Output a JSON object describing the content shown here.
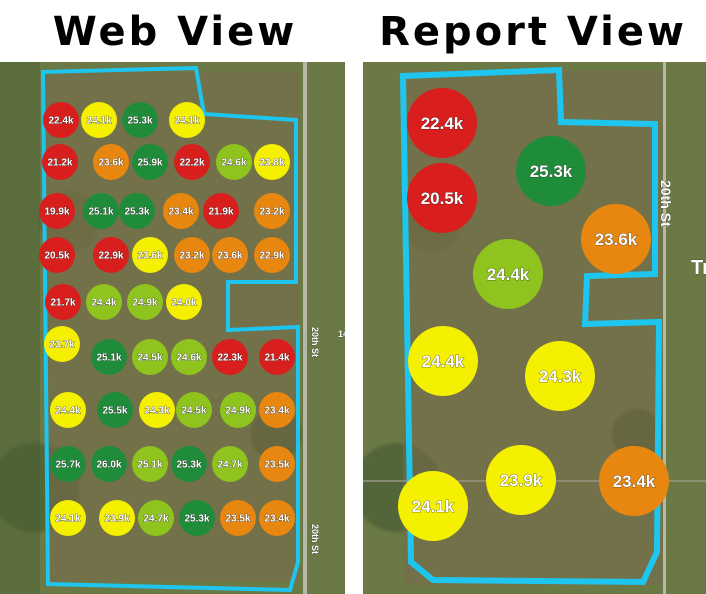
{
  "titles": {
    "left": "Web View",
    "right": "Report View"
  },
  "colors": {
    "red": "#d91e1e",
    "orange": "#e8870f",
    "yellow": "#f5f000",
    "lightgreen": "#8fc41e",
    "darkgreen": "#1f8c3a",
    "boundary": "#1ec5ee"
  },
  "map_labels": {
    "road_1": "20th St",
    "road_2": "20th St",
    "road_3": "20th St",
    "partial_1": "Tr",
    "partial_2": "14"
  },
  "web_view": {
    "points": [
      {
        "label": "22.4k",
        "color": "red"
      },
      {
        "label": "24.1k",
        "color": "yellow"
      },
      {
        "label": "25.3k",
        "color": "darkgreen"
      },
      {
        "label": "24.1k",
        "color": "yellow"
      },
      {
        "label": "21.2k",
        "color": "red"
      },
      {
        "label": "23.6k",
        "color": "orange"
      },
      {
        "label": "25.9k",
        "color": "darkgreen"
      },
      {
        "label": "22.2k",
        "color": "red"
      },
      {
        "label": "24.6k",
        "color": "lightgreen"
      },
      {
        "label": "23.8k",
        "color": "yellow"
      },
      {
        "label": "19.9k",
        "color": "red"
      },
      {
        "label": "25.1k",
        "color": "darkgreen"
      },
      {
        "label": "25.3k",
        "color": "darkgreen"
      },
      {
        "label": "23.4k",
        "color": "orange"
      },
      {
        "label": "21.9k",
        "color": "red"
      },
      {
        "label": "23.2k",
        "color": "orange"
      },
      {
        "label": "20.5k",
        "color": "red"
      },
      {
        "label": "22.9k",
        "color": "red"
      },
      {
        "label": "23.6k",
        "color": "yellow"
      },
      {
        "label": "23.2k",
        "color": "orange"
      },
      {
        "label": "23.6k",
        "color": "orange"
      },
      {
        "label": "22.9k",
        "color": "orange"
      },
      {
        "label": "21.7k",
        "color": "red"
      },
      {
        "label": "24.4k",
        "color": "lightgreen"
      },
      {
        "label": "24.9k",
        "color": "lightgreen"
      },
      {
        "label": "24.0k",
        "color": "yellow"
      },
      {
        "label": "23.7k",
        "color": "yellow"
      },
      {
        "label": "25.1k",
        "color": "darkgreen"
      },
      {
        "label": "24.5k",
        "color": "lightgreen"
      },
      {
        "label": "24.6k",
        "color": "lightgreen"
      },
      {
        "label": "22.3k",
        "color": "red"
      },
      {
        "label": "21.4k",
        "color": "red"
      },
      {
        "label": "24.4k",
        "color": "yellow"
      },
      {
        "label": "25.5k",
        "color": "darkgreen"
      },
      {
        "label": "24.3k",
        "color": "yellow"
      },
      {
        "label": "24.5k",
        "color": "lightgreen"
      },
      {
        "label": "24.9k",
        "color": "lightgreen"
      },
      {
        "label": "23.4k",
        "color": "orange"
      },
      {
        "label": "25.7k",
        "color": "darkgreen"
      },
      {
        "label": "26.0k",
        "color": "darkgreen"
      },
      {
        "label": "25.1k",
        "color": "lightgreen"
      },
      {
        "label": "25.3k",
        "color": "darkgreen"
      },
      {
        "label": "24.7k",
        "color": "lightgreen"
      },
      {
        "label": "23.5k",
        "color": "orange"
      },
      {
        "label": "24.1k",
        "color": "yellow"
      },
      {
        "label": "23.9k",
        "color": "yellow"
      },
      {
        "label": "24.7k",
        "color": "lightgreen"
      },
      {
        "label": "25.3k",
        "color": "darkgreen"
      },
      {
        "label": "23.5k",
        "color": "orange"
      },
      {
        "label": "23.4k",
        "color": "orange"
      }
    ]
  },
  "report_view": {
    "points": [
      {
        "label": "22.4k",
        "color": "red"
      },
      {
        "label": "25.3k",
        "color": "darkgreen"
      },
      {
        "label": "20.5k",
        "color": "red"
      },
      {
        "label": "23.6k",
        "color": "orange"
      },
      {
        "label": "24.4k",
        "color": "lightgreen"
      },
      {
        "label": "24.4k",
        "color": "yellow"
      },
      {
        "label": "24.3k",
        "color": "yellow"
      },
      {
        "label": "23.9k",
        "color": "yellow"
      },
      {
        "label": "23.4k",
        "color": "orange"
      },
      {
        "label": "24.1k",
        "color": "yellow"
      }
    ]
  }
}
